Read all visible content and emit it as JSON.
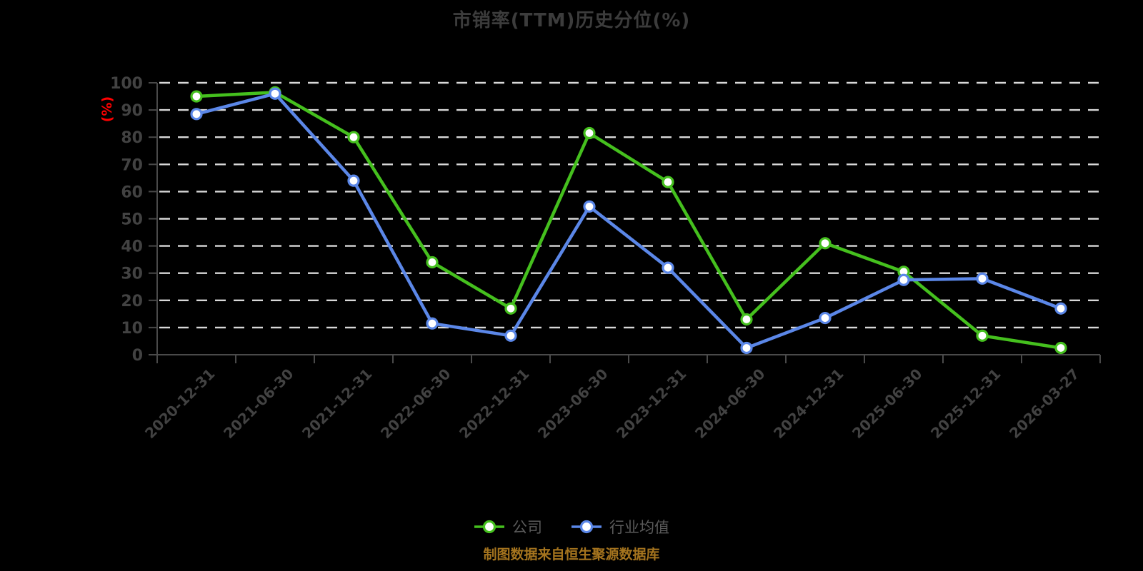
{
  "title": "市销率(TTM)历史分位(%)",
  "y_axis_unit": "(%)",
  "footer": "制图数据来自恒生聚源数据库",
  "colors": {
    "background": "#000000",
    "title": "#3c3c3c",
    "unit_label": "#ff0000",
    "axis_line": "#4a4a4a",
    "tick_label": "#424242",
    "gridline": "#d8d8d8",
    "legend_text": "#5a5a5a",
    "footer_text": "#a5741e",
    "company": "#45c01e",
    "industry": "#5b87e8"
  },
  "legend": {
    "items": [
      {
        "label": "公司",
        "marker": "line-circle-icon"
      },
      {
        "label": "行业均值",
        "marker": "line-circle-icon"
      }
    ]
  },
  "chart_data": {
    "type": "line",
    "title": "市销率(TTM)历史分位(%)",
    "xlabel": "",
    "ylabel": "(%)",
    "ylim": [
      0,
      100
    ],
    "y_ticks": [
      0,
      10,
      20,
      30,
      40,
      50,
      60,
      70,
      80,
      90,
      100
    ],
    "grid": "horizontal-dashed",
    "legend_position": "bottom-center",
    "marker_style": "white-filled-circle",
    "categories": [
      "2020-12-31",
      "2021-06-30",
      "2021-12-31",
      "2022-06-30",
      "2022-12-31",
      "2023-06-30",
      "2023-12-31",
      "2024-06-30",
      "2024-12-31",
      "2025-06-30",
      "2025-12-31",
      "2026-03-27"
    ],
    "series": [
      {
        "name": "公司",
        "color": "#45c01e",
        "values": [
          95,
          96.5,
          80,
          34,
          17,
          81.5,
          63.5,
          13,
          41,
          30.5,
          7,
          2.5
        ]
      },
      {
        "name": "行业均值",
        "color": "#5b87e8",
        "values": [
          88.5,
          96,
          64,
          11.5,
          7,
          54.5,
          32,
          2.5,
          13.5,
          27.5,
          28,
          17
        ]
      }
    ]
  }
}
